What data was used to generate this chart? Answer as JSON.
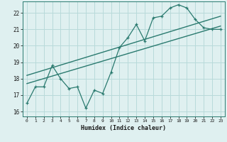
{
  "xlabel": "Humidex (Indice chaleur)",
  "bg_color": "#dff0f0",
  "line_color": "#2a7a6f",
  "grid_color": "#b8dada",
  "x_ticks": [
    0,
    1,
    2,
    3,
    4,
    5,
    6,
    7,
    8,
    9,
    10,
    11,
    12,
    13,
    14,
    15,
    16,
    17,
    18,
    19,
    20,
    21,
    22,
    23
  ],
  "y_ticks": [
    16,
    17,
    18,
    19,
    20,
    21,
    22
  ],
  "xlim": [
    -0.5,
    23.5
  ],
  "ylim": [
    15.7,
    22.7
  ],
  "line1_x": [
    0,
    1,
    2,
    3,
    4,
    5,
    6,
    7,
    8,
    9,
    10,
    11,
    12,
    13,
    14,
    15,
    16,
    17,
    18,
    19,
    20,
    21,
    22,
    23
  ],
  "line1_y": [
    16.5,
    17.5,
    17.5,
    18.8,
    18.0,
    17.4,
    17.5,
    16.2,
    17.3,
    17.1,
    18.4,
    19.9,
    20.5,
    21.3,
    20.3,
    21.7,
    21.8,
    22.3,
    22.5,
    22.3,
    21.6,
    21.1,
    21.0,
    21.0
  ],
  "line2_x": [
    0,
    23
  ],
  "line2_y": [
    17.7,
    21.2
  ],
  "line3_x": [
    0,
    23
  ],
  "line3_y": [
    18.2,
    21.8
  ]
}
